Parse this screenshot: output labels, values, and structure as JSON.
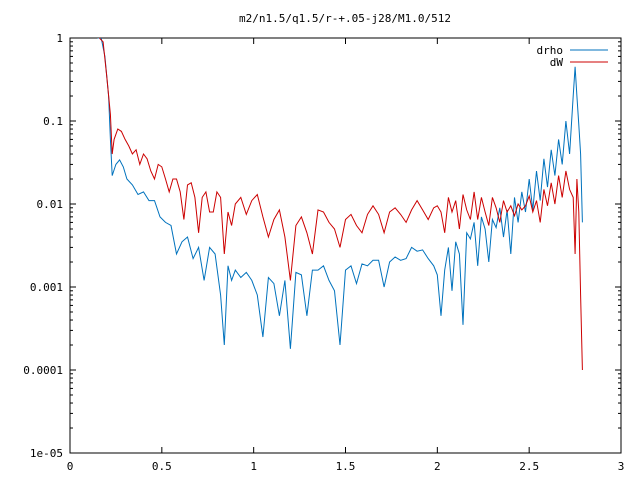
{
  "chart_data": {
    "type": "line",
    "title": "m2/n1.5/q1.5/r-+.05-j28/M1.0/512",
    "xlabel": "",
    "ylabel": "",
    "x_scale": "linear",
    "y_scale": "log",
    "xlim": [
      0,
      3
    ],
    "ylim": [
      1e-05,
      1
    ],
    "grid": false,
    "legend_position": "top-right",
    "x_ticks": [
      0,
      0.5,
      1,
      1.5,
      2,
      2.5,
      3
    ],
    "x_tick_labels": [
      "0",
      "0.5",
      "1",
      "1.5",
      "2",
      "2.5",
      "3"
    ],
    "y_ticks": [
      1,
      0.1,
      0.01,
      0.001,
      0.0001,
      1e-05
    ],
    "y_tick_labels": [
      "1",
      "0.1",
      "0.01",
      "0.001",
      "0.0001",
      "1e-05"
    ],
    "series": [
      {
        "name": "drho",
        "color": "#0072bd",
        "x": [
          0.15,
          0.17,
          0.19,
          0.21,
          0.22,
          0.23,
          0.25,
          0.27,
          0.29,
          0.31,
          0.34,
          0.37,
          0.4,
          0.43,
          0.46,
          0.49,
          0.52,
          0.55,
          0.58,
          0.61,
          0.64,
          0.67,
          0.7,
          0.73,
          0.76,
          0.79,
          0.82,
          0.84,
          0.86,
          0.88,
          0.9,
          0.93,
          0.96,
          0.99,
          1.02,
          1.05,
          1.08,
          1.11,
          1.14,
          1.17,
          1.2,
          1.23,
          1.26,
          1.29,
          1.32,
          1.35,
          1.38,
          1.41,
          1.44,
          1.47,
          1.5,
          1.53,
          1.56,
          1.59,
          1.62,
          1.65,
          1.68,
          1.71,
          1.74,
          1.77,
          1.8,
          1.83,
          1.86,
          1.89,
          1.92,
          1.95,
          1.98,
          2.0,
          2.02,
          2.04,
          2.06,
          2.08,
          2.1,
          2.12,
          2.14,
          2.16,
          2.18,
          2.2,
          2.22,
          2.24,
          2.26,
          2.28,
          2.3,
          2.32,
          2.34,
          2.36,
          2.38,
          2.4,
          2.42,
          2.44,
          2.46,
          2.48,
          2.5,
          2.52,
          2.54,
          2.56,
          2.58,
          2.6,
          2.62,
          2.64,
          2.66,
          2.68,
          2.7,
          2.72,
          2.74,
          2.75,
          2.76,
          2.77,
          2.78,
          2.79
        ],
        "values": [
          2.0,
          1.2,
          0.6,
          0.2,
          0.06,
          0.022,
          0.03,
          0.034,
          0.028,
          0.02,
          0.017,
          0.013,
          0.014,
          0.011,
          0.011,
          0.007,
          0.006,
          0.0055,
          0.0025,
          0.0035,
          0.004,
          0.0022,
          0.003,
          0.0012,
          0.003,
          0.0025,
          0.0008,
          0.0002,
          0.0018,
          0.0012,
          0.0016,
          0.0013,
          0.0015,
          0.0012,
          0.0008,
          0.00025,
          0.0013,
          0.0011,
          0.00045,
          0.0012,
          0.00018,
          0.0015,
          0.0014,
          0.00045,
          0.0016,
          0.0016,
          0.0018,
          0.0012,
          0.0009,
          0.0002,
          0.0016,
          0.0018,
          0.0011,
          0.0019,
          0.0018,
          0.0021,
          0.0021,
          0.001,
          0.002,
          0.0023,
          0.0021,
          0.0022,
          0.003,
          0.0027,
          0.0028,
          0.0022,
          0.0018,
          0.0014,
          0.00045,
          0.0016,
          0.003,
          0.0009,
          0.0035,
          0.0025,
          0.00035,
          0.0045,
          0.0038,
          0.006,
          0.0018,
          0.007,
          0.005,
          0.002,
          0.0065,
          0.0052,
          0.009,
          0.004,
          0.0085,
          0.0025,
          0.012,
          0.006,
          0.014,
          0.008,
          0.02,
          0.0085,
          0.025,
          0.011,
          0.035,
          0.016,
          0.045,
          0.022,
          0.06,
          0.03,
          0.1,
          0.04,
          0.2,
          0.45,
          0.2,
          0.09,
          0.04,
          0.006
        ]
      },
      {
        "name": "dW",
        "color": "#cc0000",
        "x": [
          0.16,
          0.18,
          0.2,
          0.22,
          0.23,
          0.24,
          0.26,
          0.28,
          0.3,
          0.32,
          0.34,
          0.36,
          0.38,
          0.4,
          0.42,
          0.44,
          0.46,
          0.48,
          0.5,
          0.52,
          0.54,
          0.56,
          0.58,
          0.6,
          0.62,
          0.64,
          0.66,
          0.68,
          0.7,
          0.72,
          0.74,
          0.76,
          0.78,
          0.8,
          0.82,
          0.84,
          0.86,
          0.88,
          0.9,
          0.93,
          0.96,
          0.99,
          1.02,
          1.05,
          1.08,
          1.11,
          1.14,
          1.17,
          1.2,
          1.23,
          1.26,
          1.29,
          1.32,
          1.35,
          1.38,
          1.41,
          1.44,
          1.47,
          1.5,
          1.53,
          1.56,
          1.59,
          1.62,
          1.65,
          1.68,
          1.71,
          1.74,
          1.77,
          1.8,
          1.83,
          1.86,
          1.89,
          1.92,
          1.95,
          1.98,
          2.0,
          2.02,
          2.04,
          2.06,
          2.08,
          2.1,
          2.12,
          2.14,
          2.16,
          2.18,
          2.2,
          2.22,
          2.24,
          2.26,
          2.28,
          2.3,
          2.32,
          2.34,
          2.36,
          2.38,
          2.4,
          2.42,
          2.44,
          2.46,
          2.48,
          2.5,
          2.52,
          2.54,
          2.56,
          2.58,
          2.6,
          2.62,
          2.64,
          2.66,
          2.68,
          2.7,
          2.72,
          2.74,
          2.75,
          2.76,
          2.77,
          2.78,
          2.79
        ],
        "values": [
          2.0,
          0.9,
          0.35,
          0.12,
          0.04,
          0.06,
          0.08,
          0.075,
          0.06,
          0.05,
          0.04,
          0.045,
          0.03,
          0.04,
          0.035,
          0.025,
          0.02,
          0.03,
          0.028,
          0.02,
          0.014,
          0.02,
          0.02,
          0.014,
          0.0065,
          0.017,
          0.018,
          0.012,
          0.0045,
          0.012,
          0.014,
          0.008,
          0.008,
          0.014,
          0.012,
          0.0025,
          0.008,
          0.0055,
          0.01,
          0.012,
          0.0075,
          0.011,
          0.013,
          0.007,
          0.004,
          0.0065,
          0.0085,
          0.004,
          0.0012,
          0.0055,
          0.007,
          0.0045,
          0.0025,
          0.0085,
          0.008,
          0.006,
          0.005,
          0.003,
          0.0065,
          0.0075,
          0.0055,
          0.0045,
          0.0075,
          0.0095,
          0.0075,
          0.0045,
          0.008,
          0.009,
          0.0075,
          0.006,
          0.0085,
          0.011,
          0.0085,
          0.0065,
          0.009,
          0.0095,
          0.008,
          0.0045,
          0.012,
          0.008,
          0.011,
          0.005,
          0.013,
          0.0085,
          0.0065,
          0.014,
          0.0065,
          0.012,
          0.008,
          0.0055,
          0.012,
          0.009,
          0.006,
          0.011,
          0.008,
          0.0095,
          0.0072,
          0.01,
          0.0085,
          0.0095,
          0.0125,
          0.008,
          0.011,
          0.006,
          0.015,
          0.0095,
          0.018,
          0.01,
          0.022,
          0.012,
          0.025,
          0.015,
          0.012,
          0.0025,
          0.02,
          0.008,
          0.0008,
          0.0001
        ]
      }
    ]
  }
}
